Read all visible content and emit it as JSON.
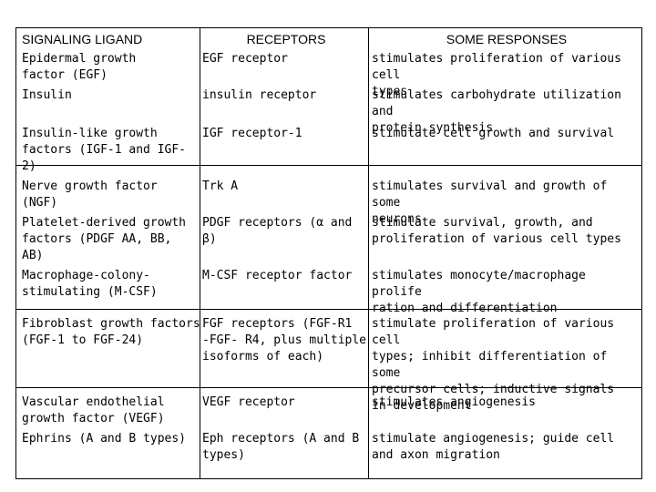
{
  "table": {
    "headers": [
      "SIGNALING LIGAND",
      "RECEPTORS",
      "SOME RESPONSES"
    ],
    "rows": [
      [
        "Epidermal growth\nfactor (EGF)",
        "EGF receptor",
        "stimulates proliferation of various cell\ntypes"
      ],
      [
        "Insulin",
        "insulin receptor",
        "stimulates carbohydrate utilization and\nprotein synthesis"
      ],
      [
        "Insulin-like growth\nfactors (IGF-1 and IGF-\n2)",
        "IGF receptor-1",
        "stimulate cell growth and survival"
      ],
      [
        "Nerve growth factor\n(NGF)",
        "Trk A",
        "stimulates survival and growth of some\nneurons"
      ],
      [
        "Platelet-derived growth\nfactors (PDGF AA, BB,\nAB)",
        "PDGF receptors (α and\nβ)",
        "stimulate survival, growth, and\nproliferation of various cell types"
      ],
      [
        "Macrophage-colony-\nstimulating (M-CSF)",
        "M-CSF receptor factor",
        "stimulates monocyte/macrophage prolife\nration and differentiation"
      ],
      [
        "Fibroblast growth factors\n(FGF-1 to FGF-24)",
        "FGF receptors (FGF-R1\n-FGF- R4, plus multiple\nisoforms of each)",
        "stimulate proliferation of various cell\ntypes; inhibit differentiation of some\nprecursor cells; inductive signals\nin development"
      ],
      [
        "Vascular endothelial\ngrowth factor (VEGF)",
        "VEGF receptor",
        "stimulates angiogenesis"
      ],
      [
        "Ephrins (A and B types)",
        "Eph receptors (A and B\ntypes)",
        "stimulate angiogenesis; guide cell\nand axon migration"
      ]
    ]
  }
}
